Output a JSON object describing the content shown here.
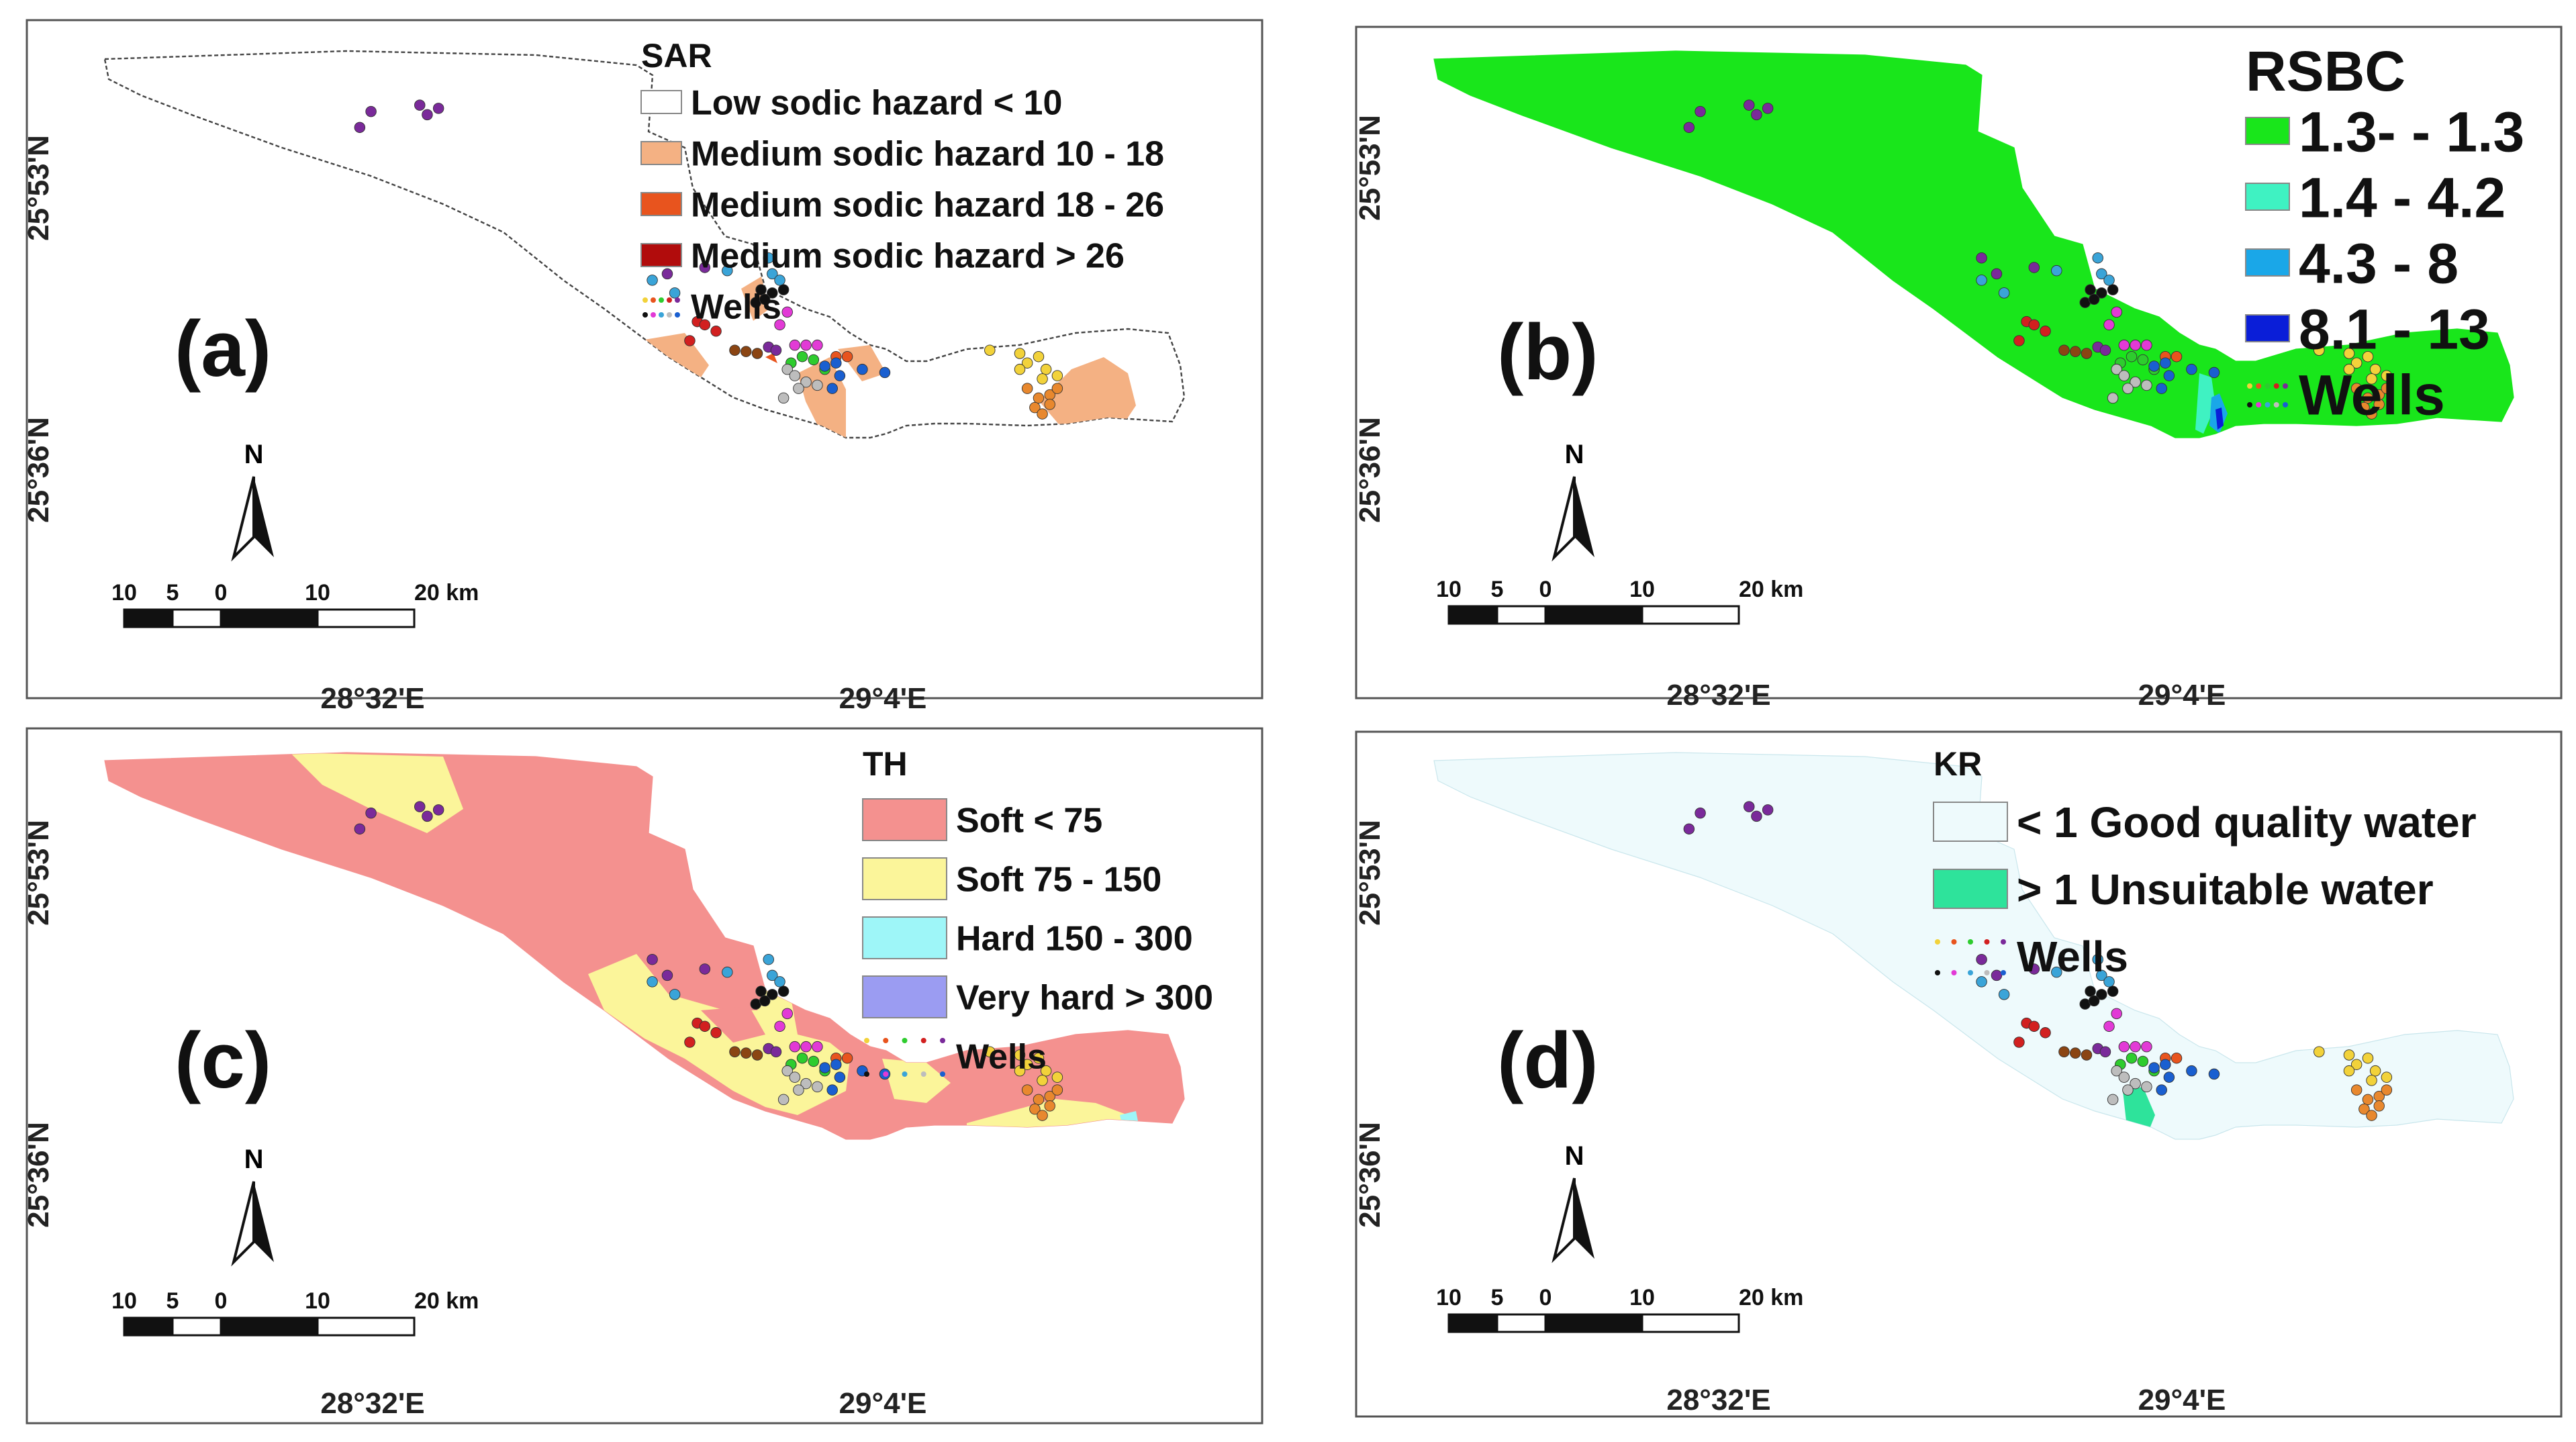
{
  "panels": [
    {
      "id": "a",
      "label": "(a)",
      "legend_title": "SAR",
      "classes": [
        {
          "label": "Low sodic hazard < 10",
          "color": "#ffffff"
        },
        {
          "label": "Medium sodic hazard 10 - 18",
          "color": "#f4b183"
        },
        {
          "label": "Medium sodic hazard 18 - 26",
          "color": "#e8541e"
        },
        {
          "label": "Medium sodic hazard > 26",
          "color": "#b10c0c"
        }
      ],
      "wells_label": "Wells",
      "base_color": "#ffffff"
    },
    {
      "id": "b",
      "label": "(b)",
      "legend_title": "RSBC",
      "classes": [
        {
          "label": "1.3- - 1.3",
          "color": "#19e61b"
        },
        {
          "label": "1.4 - 4.2",
          "color": "#3ff2c2"
        },
        {
          "label": "4.3 - 8",
          "color": "#1aa7e8"
        },
        {
          "label": "8.1 - 13",
          "color": "#0a1ed8"
        }
      ],
      "wells_label": "Wells",
      "base_color": "#19e61b"
    },
    {
      "id": "c",
      "label": "(c)",
      "legend_title": "TH",
      "classes": [
        {
          "label": "Soft < 75",
          "color": "#f4918f"
        },
        {
          "label": "Soft 75 - 150",
          "color": "#fbf59a"
        },
        {
          "label": "Hard 150 - 300",
          "color": "#9ef6f8"
        },
        {
          "label": "Very hard > 300",
          "color": "#9b9cf2"
        }
      ],
      "wells_label": "Wells",
      "base_color": "#f4918f"
    },
    {
      "id": "d",
      "label": "(d)",
      "legend_title": "KR",
      "classes": [
        {
          "label": "< 1 Good quality water",
          "color": "#eefafc"
        },
        {
          "label": "> 1 Unsuitable water",
          "color": "#2ee39b"
        }
      ],
      "wells_label": "Wells",
      "base_color": "#eefafc"
    }
  ],
  "coordinates": {
    "lat_north": "25°53'N",
    "lat_south": "25°36'N",
    "lon_west": "28°32'E",
    "lon_east": "29°4'E"
  },
  "north_arrow_label": "N",
  "scale_bar": {
    "ticks": [
      "10",
      "5",
      "0",
      "10",
      "20 km"
    ]
  },
  "wells": [
    {
      "lat": 25.88,
      "lon": 28.44,
      "color": "#7a2a9a"
    },
    {
      "lat": 25.905,
      "lon": 28.455,
      "color": "#7a2a9a"
    },
    {
      "lat": 25.915,
      "lon": 28.52,
      "color": "#7a2a9a"
    },
    {
      "lat": 25.9,
      "lon": 28.53,
      "color": "#7a2a9a"
    },
    {
      "lat": 25.91,
      "lon": 28.545,
      "color": "#7a2a9a"
    },
    {
      "lat": 25.675,
      "lon": 28.83,
      "color": "#7a2a9a"
    },
    {
      "lat": 25.65,
      "lon": 28.85,
      "color": "#7a2a9a"
    },
    {
      "lat": 25.66,
      "lon": 28.9,
      "color": "#7a2a9a"
    },
    {
      "lat": 25.64,
      "lon": 28.83,
      "color": "#3aa4d8"
    },
    {
      "lat": 25.655,
      "lon": 28.93,
      "color": "#3aa4d8"
    },
    {
      "lat": 25.62,
      "lon": 28.86,
      "color": "#3aa4d8"
    },
    {
      "lat": 25.675,
      "lon": 28.985,
      "color": "#3aa4d8"
    },
    {
      "lat": 25.65,
      "lon": 28.99,
      "color": "#3aa4d8"
    },
    {
      "lat": 25.64,
      "lon": 29.0,
      "color": "#3aa4d8"
    },
    {
      "lat": 25.625,
      "lon": 28.975,
      "color": "#111111"
    },
    {
      "lat": 25.62,
      "lon": 28.99,
      "color": "#111111"
    },
    {
      "lat": 25.625,
      "lon": 29.005,
      "color": "#111111"
    },
    {
      "lat": 25.605,
      "lon": 28.968,
      "color": "#111111"
    },
    {
      "lat": 25.61,
      "lon": 28.98,
      "color": "#111111"
    },
    {
      "lat": 25.59,
      "lon": 29.01,
      "color": "#e23ad6"
    },
    {
      "lat": 25.57,
      "lon": 29.0,
      "color": "#e23ad6"
    },
    {
      "lat": 25.575,
      "lon": 28.89,
      "color": "#d22020"
    },
    {
      "lat": 25.57,
      "lon": 28.9,
      "color": "#d22020"
    },
    {
      "lat": 25.56,
      "lon": 28.915,
      "color": "#d22020"
    },
    {
      "lat": 25.545,
      "lon": 28.88,
      "color": "#d22020"
    },
    {
      "lat": 25.535,
      "lon": 28.985,
      "color": "#7a2a9a"
    },
    {
      "lat": 25.53,
      "lon": 28.995,
      "color": "#7a2a9a"
    },
    {
      "lat": 25.53,
      "lon": 28.94,
      "color": "#8b4513"
    },
    {
      "lat": 25.528,
      "lon": 28.955,
      "color": "#8b4513"
    },
    {
      "lat": 25.525,
      "lon": 28.97,
      "color": "#8b4513"
    },
    {
      "lat": 25.538,
      "lon": 29.02,
      "color": "#e23ad6"
    },
    {
      "lat": 25.538,
      "lon": 29.035,
      "color": "#e23ad6"
    },
    {
      "lat": 25.538,
      "lon": 29.05,
      "color": "#e23ad6"
    },
    {
      "lat": 25.52,
      "lon": 29.03,
      "color": "#2ecc2e"
    },
    {
      "lat": 25.51,
      "lon": 29.015,
      "color": "#2ecc2e"
    },
    {
      "lat": 25.515,
      "lon": 29.045,
      "color": "#2ecc2e"
    },
    {
      "lat": 25.5,
      "lon": 29.06,
      "color": "#2ecc2e"
    },
    {
      "lat": 25.52,
      "lon": 29.075,
      "color": "#e8541e"
    },
    {
      "lat": 25.52,
      "lon": 29.09,
      "color": "#e8541e"
    },
    {
      "lat": 25.51,
      "lon": 29.075,
      "color": "#1a5fd0"
    },
    {
      "lat": 25.505,
      "lon": 29.06,
      "color": "#1a5fd0"
    },
    {
      "lat": 25.49,
      "lon": 29.08,
      "color": "#1a5fd0"
    },
    {
      "lat": 25.5,
      "lon": 29.11,
      "color": "#1a5fd0"
    },
    {
      "lat": 25.495,
      "lon": 29.14,
      "color": "#1a5fd0"
    },
    {
      "lat": 25.47,
      "lon": 29.07,
      "color": "#1a5fd0"
    },
    {
      "lat": 25.5,
      "lon": 29.01,
      "color": "#bdbdbd"
    },
    {
      "lat": 25.49,
      "lon": 29.02,
      "color": "#bdbdbd"
    },
    {
      "lat": 25.48,
      "lon": 29.035,
      "color": "#bdbdbd"
    },
    {
      "lat": 25.475,
      "lon": 29.05,
      "color": "#bdbdbd"
    },
    {
      "lat": 25.47,
      "lon": 29.025,
      "color": "#bdbdbd"
    },
    {
      "lat": 25.455,
      "lon": 29.005,
      "color": "#bdbdbd"
    },
    {
      "lat": 25.53,
      "lon": 29.28,
      "color": "#f2d23a"
    },
    {
      "lat": 25.525,
      "lon": 29.32,
      "color": "#f2d23a"
    },
    {
      "lat": 25.51,
      "lon": 29.33,
      "color": "#f2d23a"
    },
    {
      "lat": 25.5,
      "lon": 29.32,
      "color": "#f2d23a"
    },
    {
      "lat": 25.52,
      "lon": 29.345,
      "color": "#f2d23a"
    },
    {
      "lat": 25.5,
      "lon": 29.355,
      "color": "#f2d23a"
    },
    {
      "lat": 25.485,
      "lon": 29.35,
      "color": "#f2d23a"
    },
    {
      "lat": 25.49,
      "lon": 29.37,
      "color": "#f2d23a"
    },
    {
      "lat": 25.47,
      "lon": 29.33,
      "color": "#e8882e"
    },
    {
      "lat": 25.455,
      "lon": 29.345,
      "color": "#e8882e"
    },
    {
      "lat": 25.46,
      "lon": 29.36,
      "color": "#e8882e"
    },
    {
      "lat": 25.47,
      "lon": 29.37,
      "color": "#e8882e"
    },
    {
      "lat": 25.44,
      "lon": 29.34,
      "color": "#e8882e"
    },
    {
      "lat": 25.445,
      "lon": 29.36,
      "color": "#e8882e"
    },
    {
      "lat": 25.43,
      "lon": 29.35,
      "color": "#e8882e"
    }
  ]
}
